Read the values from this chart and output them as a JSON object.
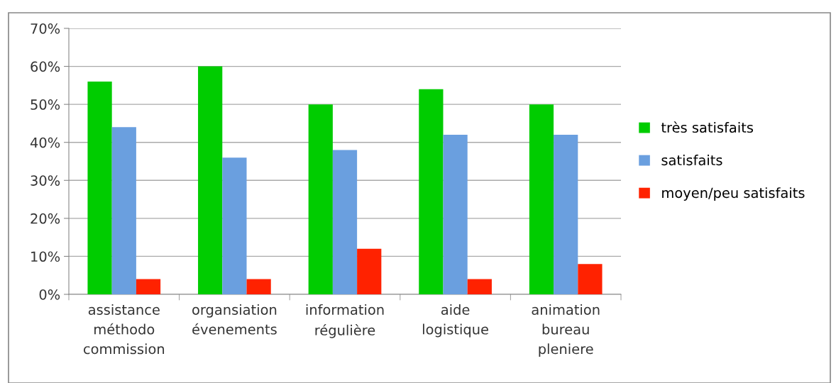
{
  "chart_data": {
    "type": "bar",
    "categories": [
      "assistance\nméthodo\ncommission",
      "organsiation\névenements",
      "information\nrégulière",
      "aide\nlogistique",
      "animation\nbureau\npleniere"
    ],
    "series": [
      {
        "name": "très satisfaits",
        "color": "#00cc00",
        "values": [
          56,
          60,
          50,
          54,
          50
        ]
      },
      {
        "name": "satisfaits",
        "color": "#6a9fdf",
        "values": [
          44,
          36,
          38,
          42,
          42
        ]
      },
      {
        "name": "moyen/peu satisfaits",
        "color": "#ff2200",
        "values": [
          4,
          4,
          12,
          4,
          8
        ]
      }
    ],
    "ylim": [
      0,
      70
    ],
    "yticks": [
      {
        "value": 0,
        "label": "0%"
      },
      {
        "value": 10,
        "label": "10%"
      },
      {
        "value": 20,
        "label": "20%"
      },
      {
        "value": 30,
        "label": "30%"
      },
      {
        "value": 40,
        "label": "40%"
      },
      {
        "value": 50,
        "label": "50%"
      },
      {
        "value": 60,
        "label": "60%"
      },
      {
        "value": 70,
        "label": "70%"
      }
    ],
    "grid": "y",
    "legend": "right"
  }
}
